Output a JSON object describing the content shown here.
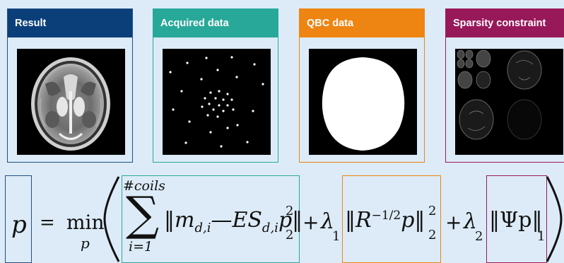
{
  "panels": {
    "result": {
      "title": "Result",
      "color": "#0b3f7a"
    },
    "acquired": {
      "title": "Acquired data",
      "color": "#28a898"
    },
    "qbc": {
      "title": "QBC data",
      "color": "#ee8411"
    },
    "sparsity": {
      "title": "Sparsity constraint",
      "color": "#98195a"
    }
  },
  "equation": {
    "lhs": "p",
    "equals": "=",
    "min_word": "min",
    "min_sub": "p",
    "sum_super": "#coils",
    "sum_sub": "i=1",
    "sum_symbol": "∑",
    "term1": "‖m",
    "term1_sub": "d,i",
    "term1_mid": "—ES",
    "term1_sub2": "d,i",
    "term1_end": "p‖",
    "sup2": "2",
    "sub2": "2",
    "plus": "+",
    "lambda": "λ",
    "lambda1_sub": "1",
    "lambda2_sub": "2",
    "term2": "‖R",
    "term2_exp": "−1/2",
    "term2_end": "p‖",
    "term3": "‖Ψp‖",
    "term3_sub": "1"
  }
}
